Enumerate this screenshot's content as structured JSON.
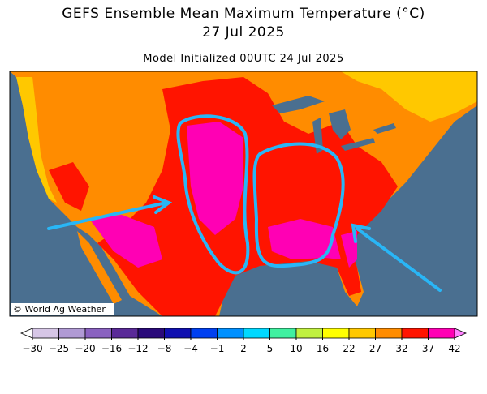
{
  "header": {
    "title": "GEFS Ensemble Mean Maximum Temperature (°C)",
    "date": "27 Jul 2025",
    "init": "Model Initialized 00UTC 24 Jul 2025"
  },
  "map": {
    "credit": "© World Ag Weather"
  },
  "colorbar": {
    "ticks": [
      {
        "value": -30,
        "label": "−30"
      },
      {
        "value": -25,
        "label": "−25"
      },
      {
        "value": -20,
        "label": "−20"
      },
      {
        "value": -16,
        "label": "−16"
      },
      {
        "value": -12,
        "label": "−12"
      },
      {
        "value": -8,
        "label": "−8"
      },
      {
        "value": -4,
        "label": "−4"
      },
      {
        "value": -1,
        "label": "−1"
      },
      2,
      5,
      10,
      16,
      22,
      27,
      32,
      37,
      42
    ],
    "colors": [
      "#d6c6e6",
      "#b09ad4",
      "#8a62c0",
      "#5a2a98",
      "#2a0a7a",
      "#1010b0",
      "#0040f0",
      "#0090ff",
      "#00d8ff",
      "#40f0a0",
      "#c0f040",
      "#ffff00",
      "#ffc800",
      "#ff8c00",
      "#ff1400",
      "#ff00b4"
    ],
    "under_color": "#ffffff",
    "over_color": "#ff80ff"
  }
}
